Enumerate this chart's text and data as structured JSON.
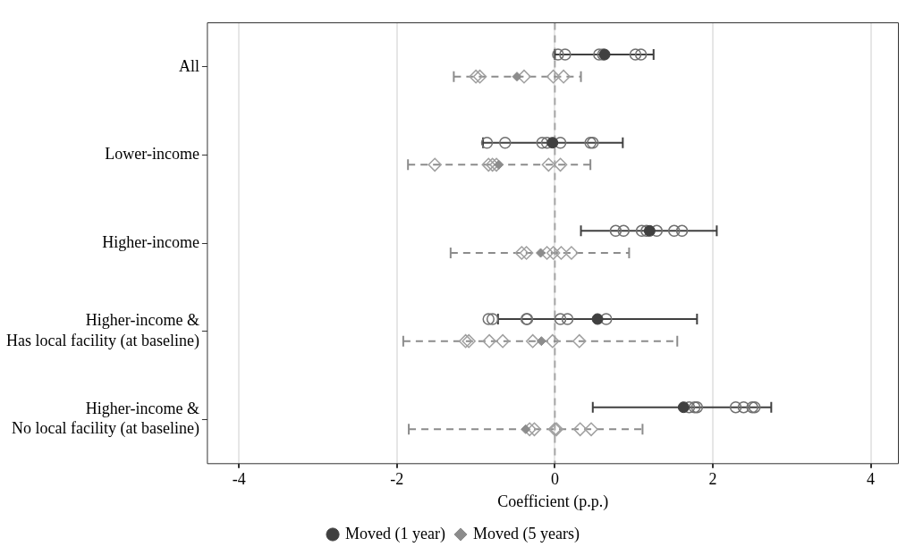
{
  "chart_data": {
    "type": "scatter",
    "orientation": "horizontal",
    "xlabel": "Coefficient (p.p.)",
    "categories": [
      "All",
      "Lower-income",
      "Higher-income",
      "Higher-income &\nHas local facility (at baseline)",
      "Higher-income &\nNo local facility (at baseline)"
    ],
    "series": [
      {
        "name": "Moved (1 year)",
        "color": "#404040",
        "marker": "circle",
        "line_style": "solid",
        "values": [
          0.63,
          -0.03,
          1.2,
          0.54,
          1.63
        ],
        "errors": [
          [
            0.0,
            1.25
          ],
          [
            -0.91,
            0.86
          ],
          [
            0.33,
            2.05
          ],
          [
            -0.72,
            1.8
          ],
          [
            0.48,
            2.74
          ]
        ]
      },
      {
        "name": "Moved (5 years)",
        "color": "#8c8c8c",
        "marker": "diamond",
        "line_style": "dashed",
        "values": [
          -0.48,
          -0.71,
          -0.18,
          -0.17,
          -0.37
        ],
        "errors": [
          [
            -1.28,
            0.33
          ],
          [
            -1.86,
            0.45
          ],
          [
            -1.32,
            0.94
          ],
          [
            -1.92,
            1.55
          ],
          [
            -1.85,
            1.11
          ]
        ]
      },
      {
        "color": "#707070",
        "marker": "circle",
        "values": [
          0.04,
          -0.86,
          0.77,
          -0.84,
          1.7
        ]
      },
      {
        "color": "#707070",
        "marker": "circle",
        "values": [
          0.13,
          -0.63,
          0.87,
          -0.79,
          1.77
        ]
      },
      {
        "color": "#707070",
        "marker": "circle",
        "values": [
          0.56,
          -0.16,
          1.1,
          -0.36,
          1.8
        ]
      },
      {
        "color": "#707070",
        "marker": "circle",
        "values": [
          0.61,
          -0.1,
          1.16,
          -0.35,
          2.29
        ]
      },
      {
        "color": "#707070",
        "marker": "circle",
        "values": [
          1.02,
          0.07,
          1.29,
          0.07,
          2.39
        ]
      },
      {
        "color": "#707070",
        "marker": "circle",
        "values": [
          1.09,
          0.45,
          1.51,
          0.16,
          2.5
        ]
      },
      {
        "color": "#707070",
        "marker": "circle",
        "values": [
          null,
          0.48,
          1.61,
          0.65,
          2.53
        ]
      },
      {
        "color": "#a0a0a0",
        "marker": "diamond",
        "values": [
          -1.0,
          -1.52,
          -0.42,
          -1.13,
          -0.32
        ]
      },
      {
        "color": "#a0a0a0",
        "marker": "diamond",
        "values": [
          -0.95,
          -0.84,
          -0.36,
          -1.09,
          -0.26
        ]
      },
      {
        "color": "#a0a0a0",
        "marker": "diamond",
        "values": [
          null,
          -0.79,
          -0.1,
          -0.83,
          0.0
        ]
      },
      {
        "color": "#a0a0a0",
        "marker": "diamond",
        "values": [
          -0.39,
          -0.74,
          -0.02,
          -0.66,
          0.02
        ]
      },
      {
        "color": "#a0a0a0",
        "marker": "diamond",
        "values": [
          -0.02,
          -0.08,
          0.08,
          -0.28,
          0.32
        ]
      },
      {
        "color": "#a0a0a0",
        "marker": "diamond",
        "values": [
          0.11,
          0.07,
          0.21,
          -0.03,
          0.46
        ]
      },
      {
        "color": "#a0a0a0",
        "marker": "diamond",
        "values": [
          null,
          null,
          null,
          0.31,
          null
        ]
      }
    ],
    "xlim": [
      -4.4,
      4.35
    ],
    "xticks": [
      -4,
      -2,
      0,
      2,
      4
    ],
    "ref_lines": [
      {
        "axis": "x",
        "value": 0,
        "color": "#a6a6a6",
        "line_style": "dashed"
      }
    ],
    "grid": "x",
    "legend": "bottom"
  }
}
